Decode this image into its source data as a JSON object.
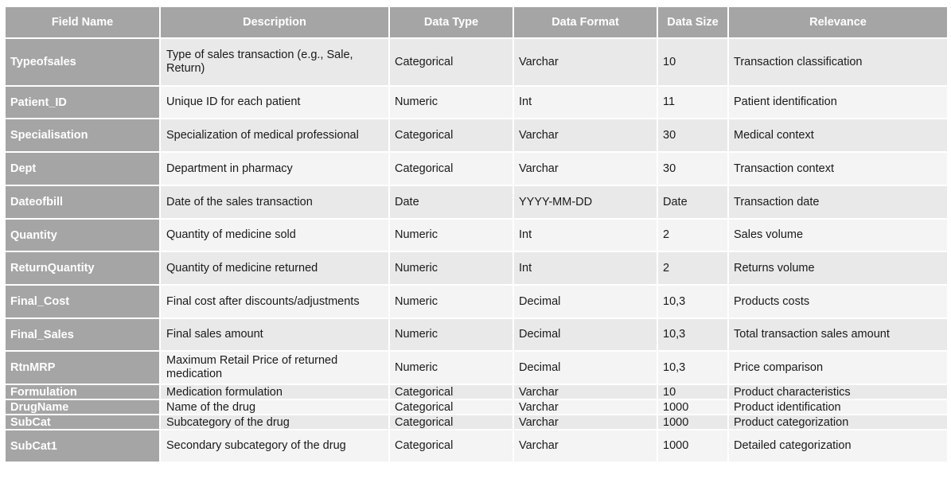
{
  "table": {
    "headers": [
      "Field Name",
      "Description",
      "Data Type",
      "Data Format",
      "Data Size",
      "Relevance"
    ],
    "rows": [
      {
        "field": "Typeofsales",
        "description": "Type of sales transaction (e.g., Sale, Return)",
        "type": "Categorical",
        "format": "Varchar",
        "size": "10",
        "relevance": "Transaction classification"
      },
      {
        "field": "Patient_ID",
        "description": "Unique ID for each patient",
        "type": "Numeric",
        "format": "Int",
        "size": "11",
        "relevance": "Patient identification"
      },
      {
        "field": "Specialisation",
        "description": "Specialization of medical professional",
        "type": "Categorical",
        "format": "Varchar",
        "size": "30",
        "relevance": "Medical context"
      },
      {
        "field": "Dept",
        "description": "Department in pharmacy",
        "type": "Categorical",
        "format": "Varchar",
        "size": "30",
        "relevance": "Transaction context"
      },
      {
        "field": "Dateofbill",
        "description": "Date of the sales transaction",
        "type": "Date",
        "format": "YYYY-MM-DD",
        "size": "Date",
        "relevance": "Transaction date"
      },
      {
        "field": "Quantity",
        "description": "Quantity of medicine sold",
        "type": "Numeric",
        "format": "Int",
        "size": "2",
        "relevance": "Sales volume"
      },
      {
        "field": "ReturnQuantity",
        "description": "Quantity of medicine returned",
        "type": "Numeric",
        "format": "Int",
        "size": "2",
        "relevance": "Returns volume"
      },
      {
        "field": "Final_Cost",
        "description": "Final cost after discounts/adjustments",
        "type": "Numeric",
        "format": "Decimal",
        "size": "10,3",
        "relevance": "Products costs"
      },
      {
        "field": "Final_Sales",
        "description": "Final sales amount",
        "type": "Numeric",
        "format": "Decimal",
        "size": "10,3",
        "relevance": "Total transaction sales amount"
      },
      {
        "field": "RtnMRP",
        "description": "Maximum Retail Price of returned medication",
        "type": "Numeric",
        "format": "Decimal",
        "size": "10,3",
        "relevance": "Price comparison"
      },
      {
        "field": "Formulation",
        "description": "Medication formulation",
        "type": "Categorical",
        "format": "Varchar",
        "size": "10",
        "relevance": "Product characteristics"
      },
      {
        "field": "DrugName",
        "description": "Name of the drug",
        "type": "Categorical",
        "format": "Varchar",
        "size": "1000",
        "relevance": "Product identification"
      },
      {
        "field": "SubCat",
        "description": "Subcategory of the drug",
        "type": "Categorical",
        "format": "Varchar",
        "size": "1000",
        "relevance": "Product categorization"
      },
      {
        "field": "SubCat1",
        "description": "Secondary subcategory of the drug",
        "type": "Categorical",
        "format": "Varchar",
        "size": "1000",
        "relevance": "Detailed categorization"
      }
    ]
  }
}
